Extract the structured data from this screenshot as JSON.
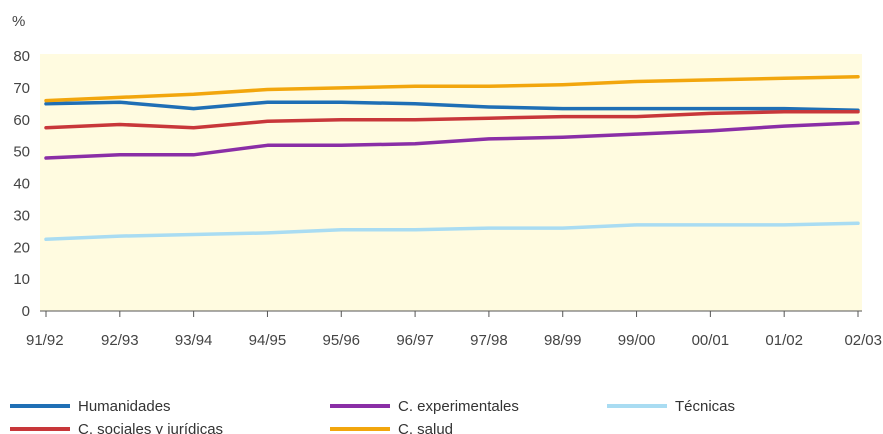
{
  "chart_data": {
    "type": "line",
    "title": "",
    "xlabel": "",
    "ylabel": "%",
    "ylim": [
      0,
      80
    ],
    "yticks": [
      0,
      10,
      20,
      30,
      40,
      50,
      60,
      70,
      80
    ],
    "categories": [
      "91/92",
      "92/93",
      "93/94",
      "94/95",
      "95/96",
      "96/97",
      "97/98",
      "98/99",
      "99/00",
      "00/01",
      "01/02",
      "02/03"
    ],
    "series": [
      {
        "name": "Humanidades",
        "color": "#1f6fb5",
        "values": [
          65,
          65.5,
          63.5,
          65.5,
          65.5,
          65,
          64,
          63.5,
          63.5,
          63.5,
          63.5,
          63
        ]
      },
      {
        "name": "C. experimentales",
        "color": "#8a2ea6",
        "values": [
          48,
          49,
          49,
          52,
          52,
          52.5,
          54,
          54.5,
          55.5,
          56.5,
          58,
          59
        ]
      },
      {
        "name": "Técnicas",
        "color": "#a9dcf2",
        "values": [
          22.5,
          23.5,
          24,
          24.5,
          25.5,
          25.5,
          26,
          26,
          27,
          27,
          27,
          27.5
        ]
      },
      {
        "name": "C. sociales y jurídicas",
        "color": "#c8373a",
        "values": [
          57.5,
          58.5,
          57.5,
          59.5,
          60,
          60,
          60.5,
          61,
          61,
          62,
          62.5,
          62.5
        ]
      },
      {
        "name": "C. salud",
        "color": "#f2a60d",
        "values": [
          66,
          67,
          68,
          69.5,
          70,
          70.5,
          70.5,
          71,
          72,
          72.5,
          73,
          73.5
        ]
      }
    ],
    "grid": false,
    "legend_position": "bottom",
    "plot_background": "#fffbe0"
  }
}
